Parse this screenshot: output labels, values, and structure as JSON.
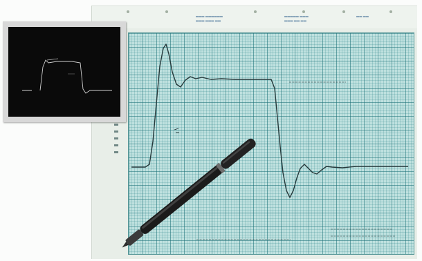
{
  "scene": {
    "description_type": "photograph",
    "colors": {
      "paper": "#e8eee8",
      "grid_fill": "#bfe1df",
      "grid_lines": "#1c6e76",
      "trace": "#26393b",
      "scope_screen": "#0a0a0a",
      "scope_trace": "#e8e8e8",
      "pen_body": "#1b1b1b"
    }
  }
}
